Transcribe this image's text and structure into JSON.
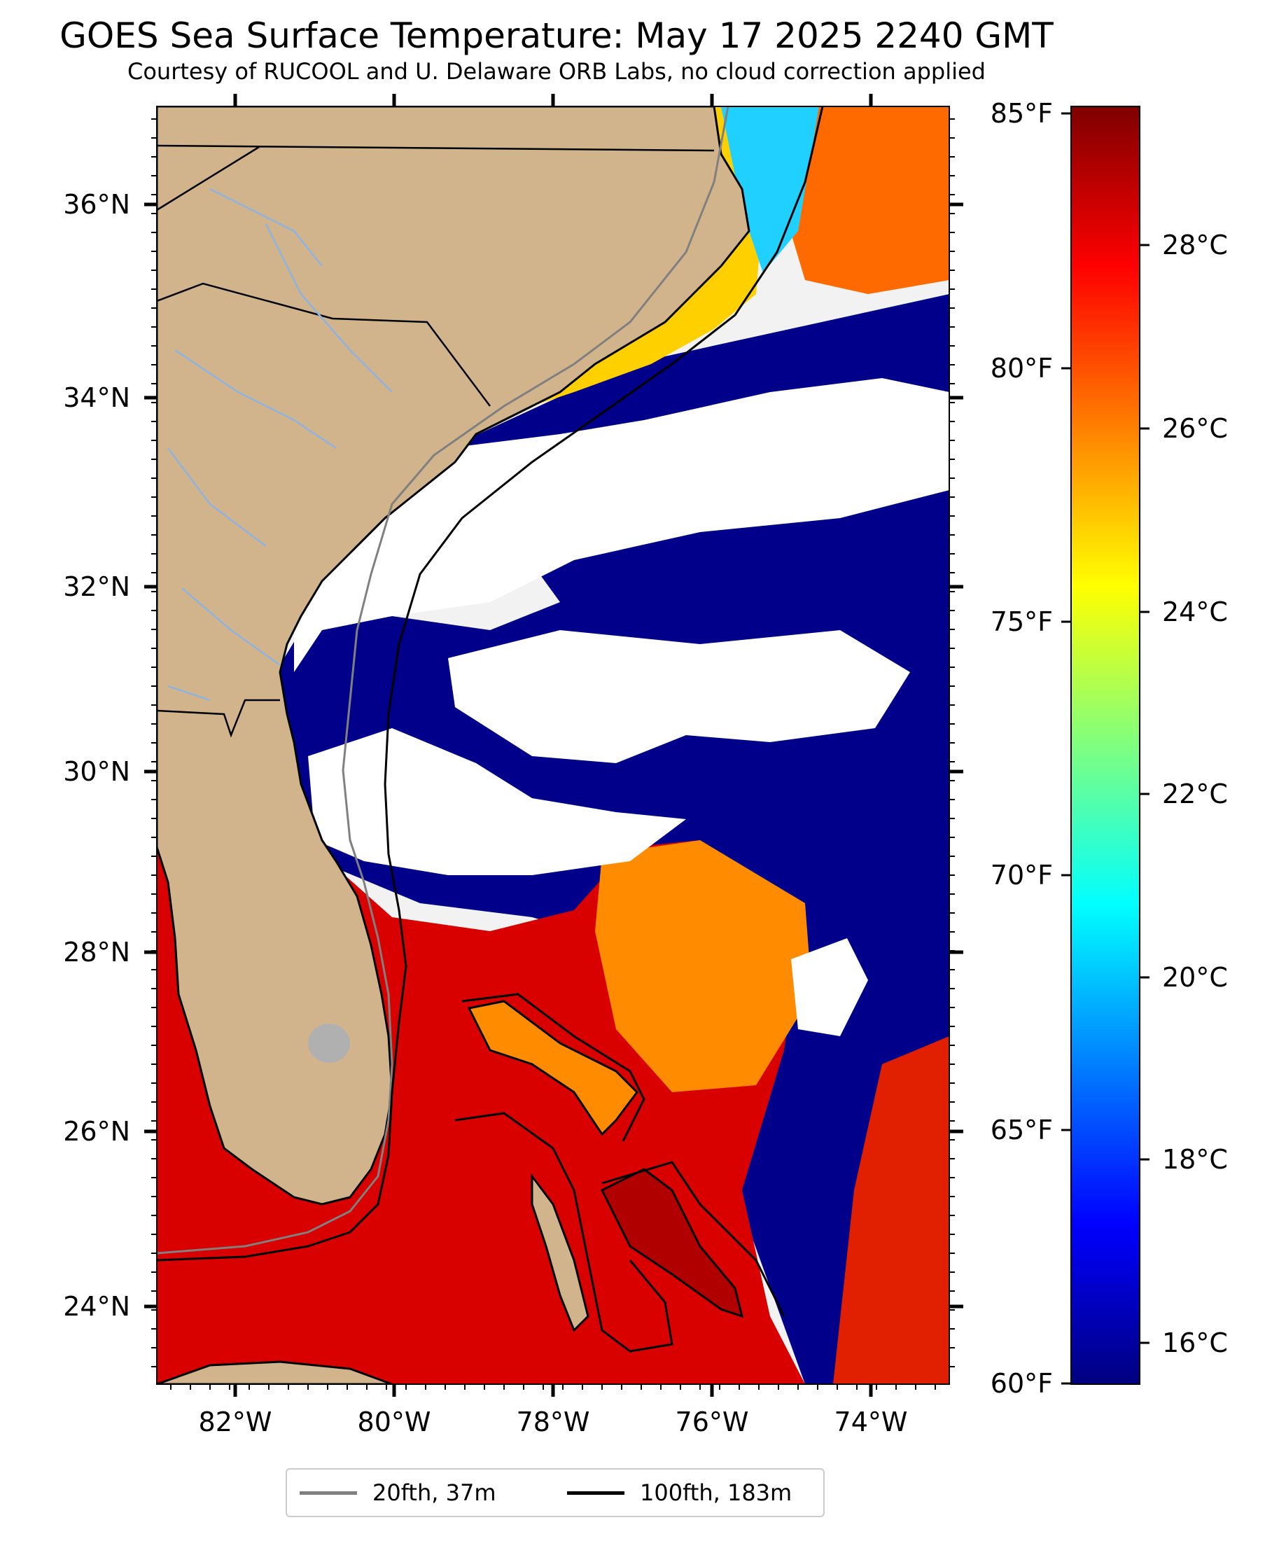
{
  "title": "GOES Sea Surface Temperature: May 17 2025 2240 GMT",
  "subtitle": "Courtesy of RUCOOL and U. Delaware ORB Labs, no cloud correction applied",
  "map": {
    "lat_labels": [
      "36°N",
      "34°N",
      "32°N",
      "30°N",
      "28°N",
      "26°N",
      "24°N"
    ],
    "lon_labels": [
      "82°W",
      "80°W",
      "78°W",
      "76°W",
      "74°W"
    ],
    "colors": {
      "land": "#d2b48c",
      "cloud": "#ffffff",
      "warm_water": "#d90000",
      "isobath_20fth": "#808080",
      "isobath_100fth": "#000000",
      "rivers": "#8fb3e0"
    }
  },
  "colorbar": {
    "fahrenheit_labels": [
      "85°F",
      "80°F",
      "75°F",
      "70°F",
      "65°F",
      "60°F"
    ],
    "celsius_labels": [
      "28°C",
      "26°C",
      "24°C",
      "22°C",
      "20°C",
      "18°C",
      "16°C"
    ],
    "colormap": [
      "#00007f",
      "#0000ff",
      "#007fff",
      "#00ffff",
      "#7fff7f",
      "#ffff00",
      "#ff7f00",
      "#ff0000",
      "#7f0000"
    ]
  },
  "legend": {
    "items": [
      {
        "label": "20fth, 37m",
        "color": "#808080"
      },
      {
        "label": "100fth, 183m",
        "color": "#000000"
      }
    ]
  }
}
